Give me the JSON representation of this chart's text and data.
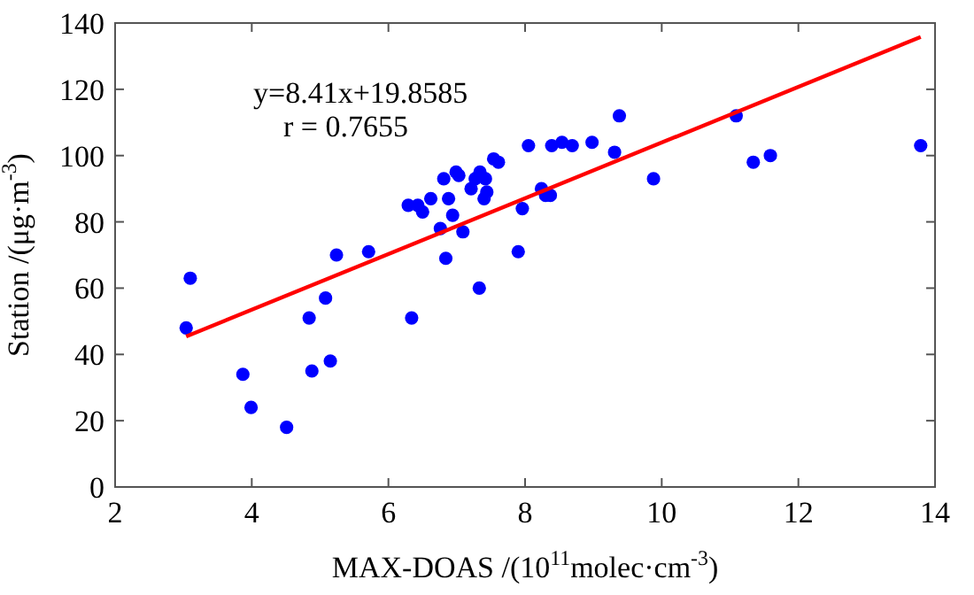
{
  "chart_data": {
    "type": "scatter",
    "xlabel": "MAX-DOAS /(10$^{11}$molec·cm$^{-3}$)",
    "ylabel": "Station /(μg·m$^{-3}$)",
    "xlim": [
      2,
      14
    ],
    "xticks": [
      2,
      4,
      6,
      8,
      10,
      12,
      14
    ],
    "ylim": [
      0,
      140
    ],
    "yticks": [
      0,
      20,
      40,
      60,
      80,
      100,
      120,
      140
    ],
    "grid": false,
    "annotations": [
      "y=8.41x+19.8585",
      "r =  0.7655"
    ],
    "series": [
      {
        "color": "#0000ff",
        "marker": "circle",
        "x": [
          3.04,
          3.1,
          3.87,
          3.99,
          4.51,
          4.84,
          4.88,
          5.08,
          5.15,
          5.24,
          5.71,
          6.29,
          6.34,
          6.43,
          6.5,
          6.62,
          6.76,
          6.81,
          6.84,
          6.88,
          6.94,
          6.99,
          7.03,
          7.09,
          7.21,
          7.27,
          7.34,
          7.33,
          7.42,
          7.44,
          7.4,
          7.54,
          7.61,
          7.9,
          7.96,
          8.05,
          8.24,
          8.3,
          8.37,
          8.39,
          8.54,
          8.69,
          8.98,
          9.31,
          9.38,
          9.88,
          11.09,
          11.34,
          11.59,
          13.79
        ],
        "values": [
          48,
          63,
          34,
          24,
          18,
          51,
          35,
          57,
          38,
          70,
          71,
          85,
          51,
          85,
          83,
          87,
          78,
          93,
          69,
          87,
          82,
          95,
          94,
          77,
          90,
          93,
          95,
          60,
          93,
          89,
          87,
          99,
          98,
          71,
          84,
          103,
          90,
          88,
          88,
          103,
          104,
          103,
          104,
          101,
          112,
          93,
          112,
          98,
          100,
          103
        ]
      },
      {
        "type": "line",
        "color": "#ff0000",
        "line_style": "solid",
        "x": [
          3.04,
          13.79
        ],
        "values": [
          45.4,
          135.8
        ]
      }
    ]
  }
}
